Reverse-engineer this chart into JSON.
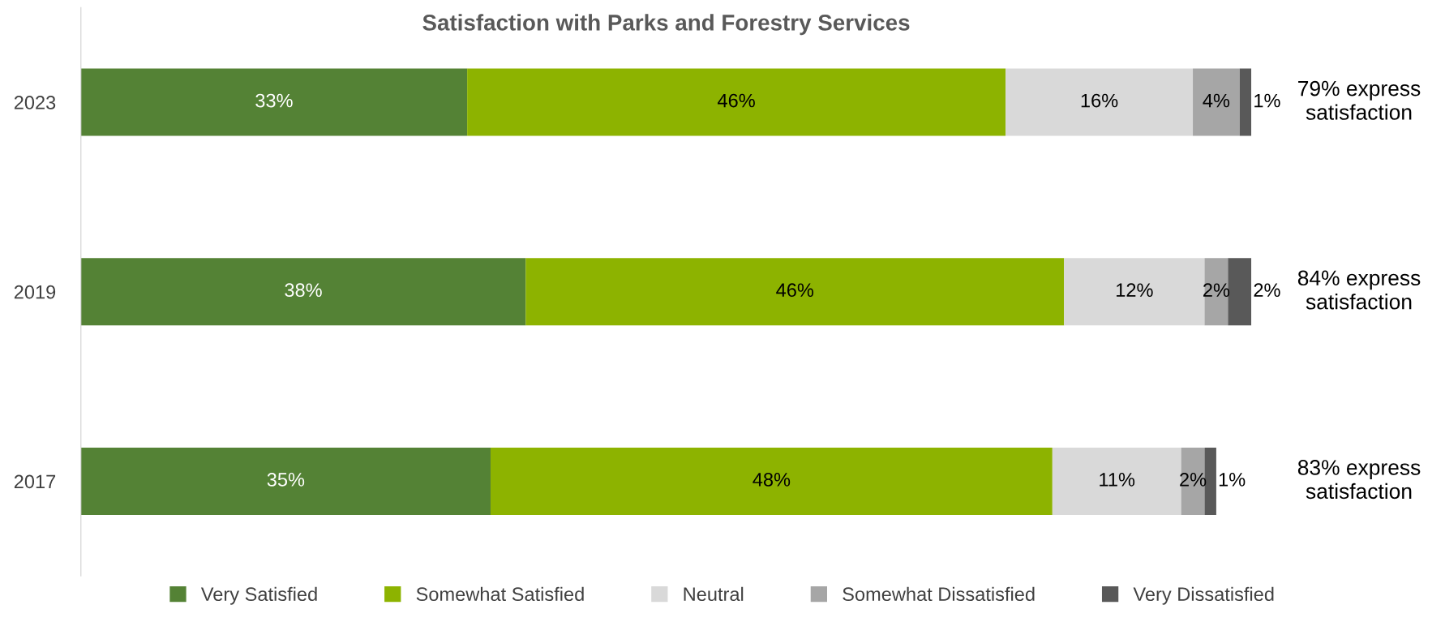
{
  "chart_data": {
    "type": "bar",
    "orientation": "horizontal",
    "stacked": true,
    "tick_labels": "y",
    "legend": "bottom",
    "grid": false,
    "title": "Satisfaction with Parks and Forestry Services",
    "categories": [
      "2023",
      "2019",
      "2017"
    ],
    "series": [
      {
        "name": "Very Satisfied",
        "color": "#548235",
        "values": [
          33,
          38,
          35
        ],
        "value_labels": [
          "33%",
          "38%",
          "35%"
        ]
      },
      {
        "name": "Somewhat Satisfied",
        "color": "#8db300",
        "values": [
          46,
          46,
          48
        ],
        "value_labels": [
          "46%",
          "46%",
          "48%"
        ]
      },
      {
        "name": "Neutral",
        "color": "#d9d9d9",
        "values": [
          16,
          12,
          11
        ],
        "value_labels": [
          "16%",
          "12%",
          "11%"
        ]
      },
      {
        "name": "Somewhat Dissatisfied",
        "color": "#a6a6a6",
        "values": [
          4,
          2,
          2
        ],
        "value_labels": [
          "4%",
          "2%",
          "2%"
        ]
      },
      {
        "name": "Very Dissatisfied",
        "color": "#595959",
        "values": [
          1,
          2,
          1
        ],
        "value_labels": [
          "1%",
          "2%",
          "1%"
        ]
      }
    ],
    "annotations": [
      "79% express\nsatisfaction",
      "84% express\nsatisfaction",
      "83% express\nsatisfaction"
    ]
  }
}
